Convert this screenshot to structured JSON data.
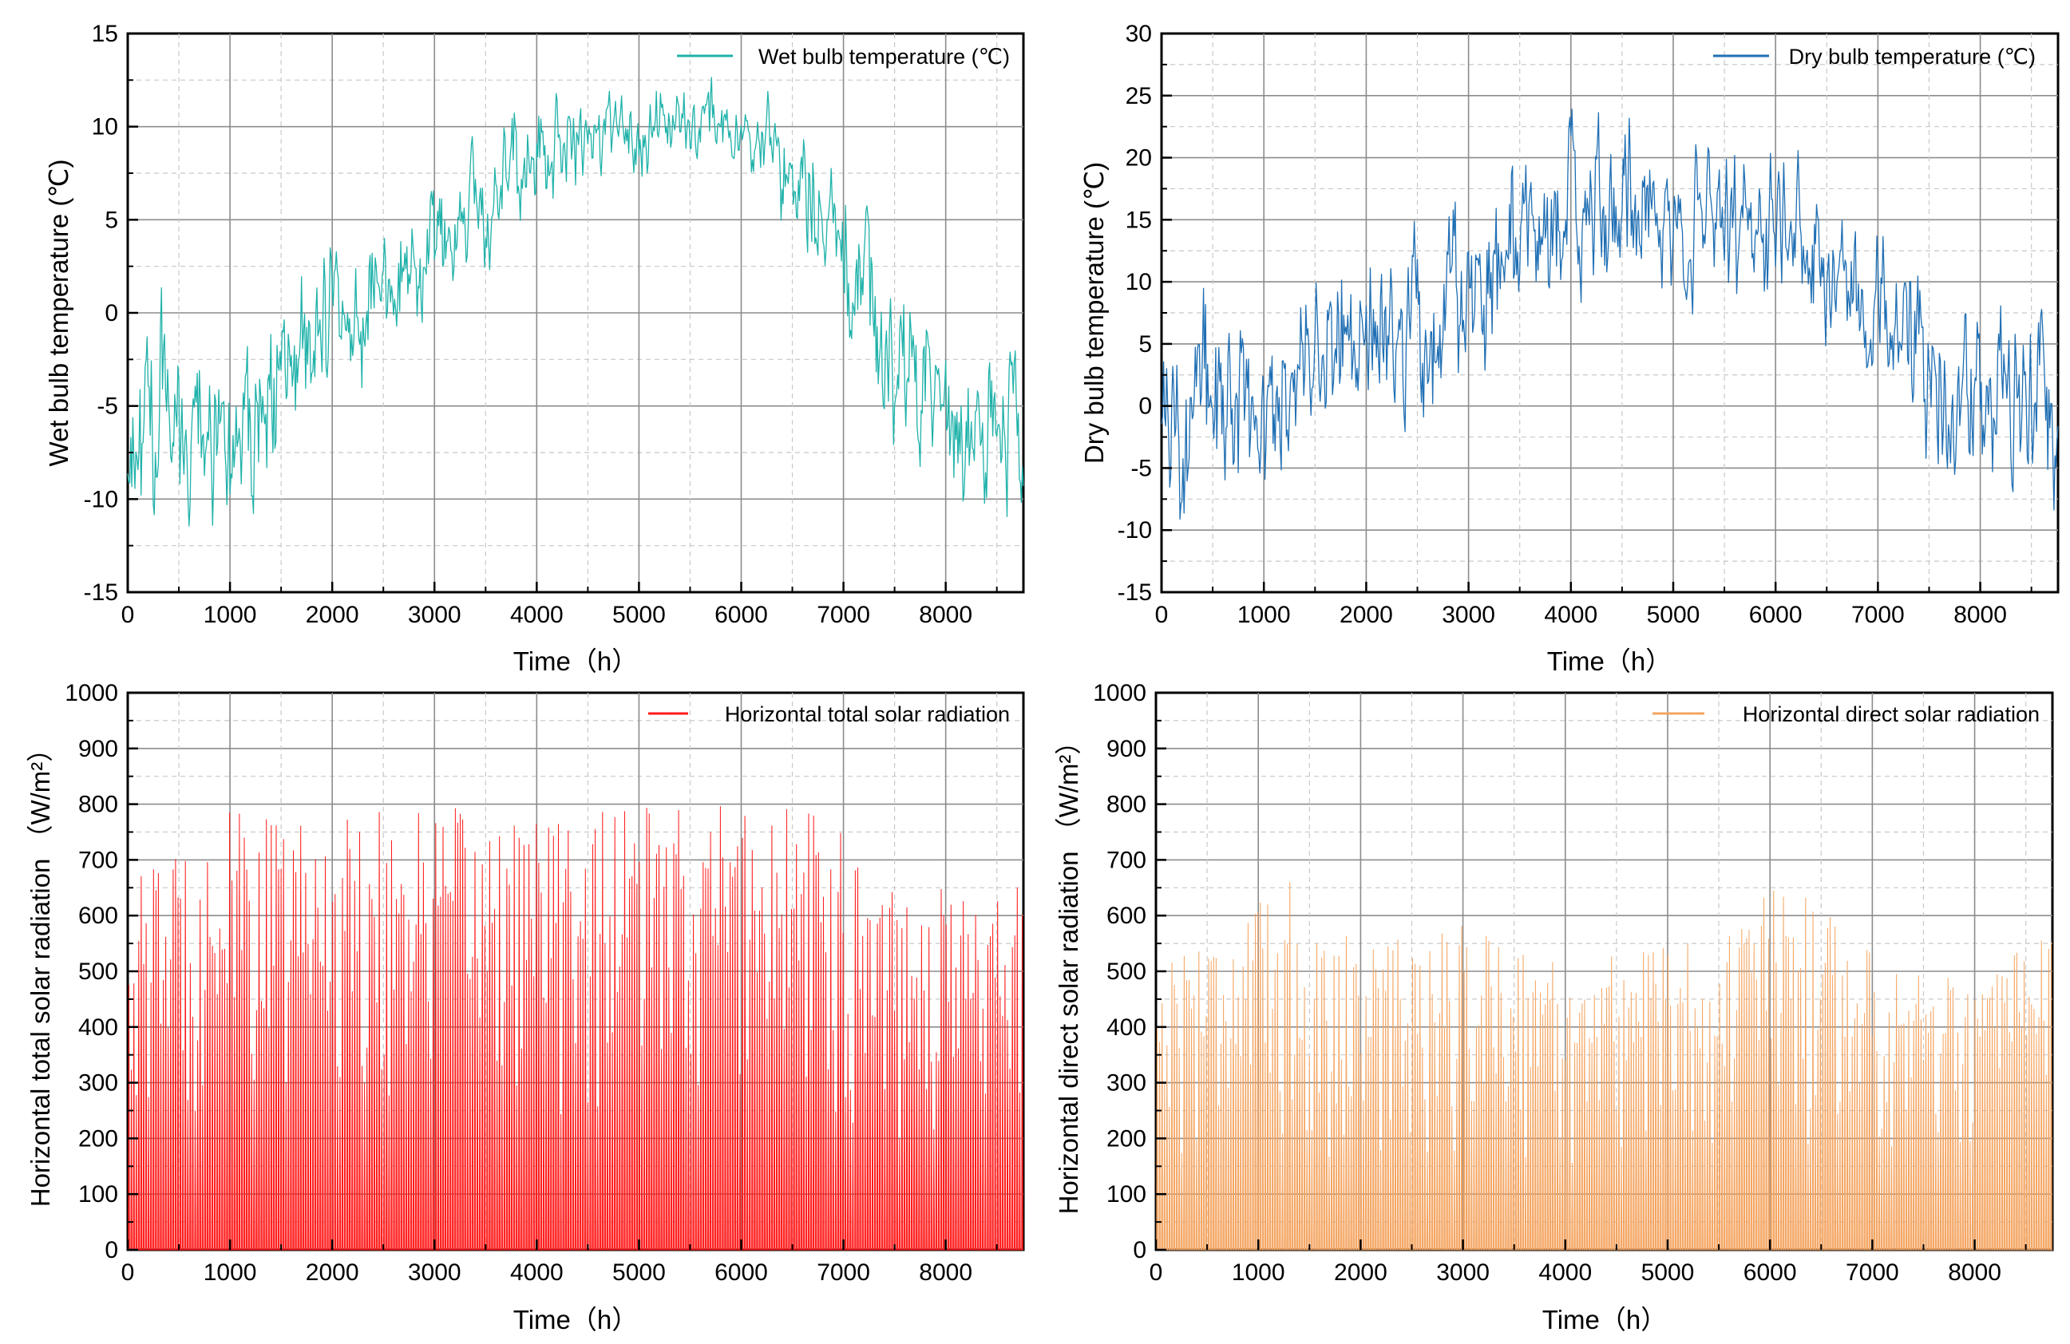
{
  "chart_data": [
    {
      "type": "line",
      "xlabel": "Time（h）",
      "ylabel": "Wet bulb temperature (℃)",
      "xlim": [
        0,
        8760
      ],
      "ylim": [
        -15,
        15
      ],
      "x_ticks": [
        "0",
        "1000",
        "2000",
        "3000",
        "4000",
        "5000",
        "6000",
        "7000",
        "8000"
      ],
      "y_ticks": [
        "-15",
        "-10",
        "-5",
        "0",
        "5",
        "10",
        "15"
      ],
      "grid": true,
      "legend_position": "top-right",
      "series": [
        {
          "name": "Wet bulb temperature (℃)",
          "color": "#20b2aa",
          "x_step": 10,
          "envelope_x": [
            0,
            500,
            1000,
            1500,
            2000,
            2500,
            3000,
            3500,
            4000,
            4500,
            5000,
            5500,
            6000,
            6500,
            7000,
            7500,
            8000,
            8500,
            8760
          ],
          "envelope_mean": [
            -8,
            -5,
            -7,
            -4,
            -1,
            1,
            3,
            6,
            8.5,
            9.5,
            10,
            10,
            10,
            7,
            3,
            -3,
            -6,
            -6,
            -7
          ],
          "envelope_amplitude": [
            4,
            5,
            4,
            4,
            3.5,
            3,
            3,
            3,
            2.5,
            2,
            2,
            2,
            1.5,
            3,
            3.5,
            4,
            3.5,
            3.5,
            3.5
          ]
        }
      ]
    },
    {
      "type": "line",
      "xlabel": "Time（h）",
      "ylabel": "Dry bulb temperature (℃)",
      "xlim": [
        0,
        8760
      ],
      "ylim": [
        -15,
        30
      ],
      "x_ticks": [
        "0",
        "1000",
        "2000",
        "3000",
        "4000",
        "5000",
        "6000",
        "7000",
        "8000"
      ],
      "y_ticks": [
        "-15",
        "-10",
        "-5",
        "0",
        "5",
        "10",
        "15",
        "20",
        "25",
        "30"
      ],
      "grid": true,
      "legend_position": "top-right",
      "series": [
        {
          "name": "Dry bulb temperature (℃)",
          "color": "#1f6fb4",
          "x_step": 10,
          "envelope_x": [
            0,
            500,
            1000,
            1500,
            2000,
            2500,
            3000,
            3500,
            4000,
            4500,
            5000,
            5500,
            6000,
            6500,
            7000,
            7500,
            8000,
            8500,
            8760
          ],
          "envelope_mean": [
            -3,
            2,
            -1,
            4,
            6,
            7,
            9,
            13,
            16,
            17,
            15,
            14,
            13,
            12,
            9,
            3,
            1,
            1,
            -1
          ],
          "envelope_amplitude": [
            6,
            7,
            6,
            6,
            6,
            6,
            6,
            6,
            6,
            6,
            5,
            5,
            5,
            5,
            6,
            6,
            6,
            6,
            6
          ]
        }
      ]
    },
    {
      "type": "line",
      "xlabel": "Time（h）",
      "ylabel": "Horizontal total solar radiation （W/m²）",
      "xlim": [
        0,
        8760
      ],
      "ylim": [
        0,
        1000
      ],
      "x_ticks": [
        "0",
        "1000",
        "2000",
        "3000",
        "4000",
        "5000",
        "6000",
        "7000",
        "8000"
      ],
      "y_ticks": [
        "0",
        "100",
        "200",
        "300",
        "400",
        "500",
        "600",
        "700",
        "800",
        "900",
        "1000"
      ],
      "grid": true,
      "legend_position": "top-right",
      "series": [
        {
          "name": "Horizontal total solar radiation",
          "color": "#ff1a1a",
          "period_h": 24,
          "daily_peak_x": [
            0,
            500,
            1000,
            1500,
            2000,
            2500,
            3000,
            3500,
            4000,
            4500,
            5000,
            5500,
            6000,
            6500,
            7000,
            7500,
            8000,
            8500,
            8760
          ],
          "daily_peak_y": [
            650,
            740,
            790,
            770,
            790,
            795,
            790,
            800,
            780,
            790,
            795,
            790,
            820,
            800,
            760,
            690,
            650,
            680,
            650
          ]
        }
      ]
    },
    {
      "type": "line",
      "xlabel": "Time（h）",
      "ylabel": "Horizontal direct solar radiation （W/m²）",
      "xlim": [
        0,
        8760
      ],
      "ylim": [
        0,
        1000
      ],
      "x_ticks": [
        "0",
        "1000",
        "2000",
        "3000",
        "4000",
        "5000",
        "6000",
        "7000",
        "8000"
      ],
      "y_ticks": [
        "0",
        "100",
        "200",
        "300",
        "400",
        "500",
        "600",
        "700",
        "800",
        "900",
        "1000"
      ],
      "grid": true,
      "legend_position": "top-right",
      "series": [
        {
          "name": "Horizontal direct solar radiation",
          "color": "#f4a460",
          "period_h": 24,
          "daily_peak_x": [
            0,
            500,
            1000,
            1300,
            1500,
            2000,
            2500,
            3000,
            3500,
            4000,
            4500,
            5000,
            5500,
            5900,
            6300,
            7000,
            7500,
            8000,
            8500,
            8760
          ],
          "daily_peak_y": [
            520,
            600,
            620,
            680,
            560,
            580,
            560,
            590,
            570,
            510,
            540,
            560,
            560,
            650,
            640,
            560,
            510,
            470,
            550,
            560
          ]
        }
      ]
    }
  ]
}
